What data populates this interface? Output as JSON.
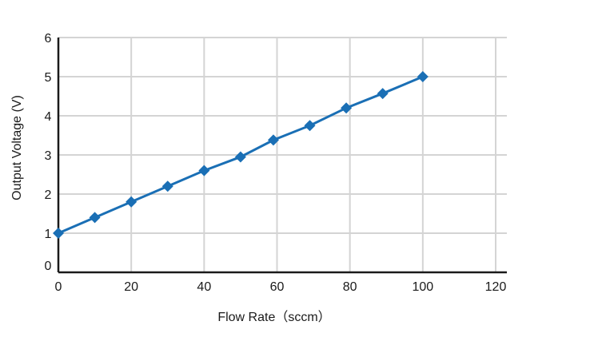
{
  "chart_data": {
    "type": "line",
    "title": "",
    "xlabel": "Flow Rate（sccm）",
    "ylabel": "Output Voltage (V)",
    "xlim": [
      0,
      120
    ],
    "ylim": [
      0,
      6
    ],
    "x_ticks": [
      0,
      20,
      40,
      60,
      80,
      100,
      120
    ],
    "y_ticks": [
      0,
      1,
      2,
      3,
      4,
      5,
      6
    ],
    "grid": true,
    "legend": "none",
    "series": [
      {
        "marker": "diamond",
        "color": "#1a6fb5",
        "x": [
          0,
          10,
          20,
          30,
          40,
          50,
          59,
          69,
          79,
          89,
          100
        ],
        "y": [
          1.0,
          1.4,
          1.8,
          2.2,
          2.6,
          2.95,
          3.38,
          3.75,
          4.2,
          4.57,
          5.0
        ]
      }
    ]
  }
}
